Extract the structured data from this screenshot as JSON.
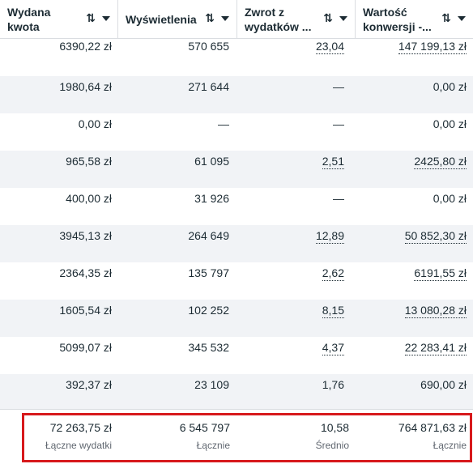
{
  "columns": [
    {
      "label": "Wydana\nkwota",
      "sort_icon": "sort-arrows-icon",
      "menu_icon": "caret-down-icon"
    },
    {
      "label": "Wyświetlenia",
      "sort_icon": "sort-arrows-icon",
      "menu_icon": "caret-down-icon"
    },
    {
      "label": "Zwrot z\nwydatków ...",
      "sort_icon": "sort-arrows-icon",
      "menu_icon": "caret-down-icon"
    },
    {
      "label": "Wartość\nkonwersji -...",
      "sort_icon": "sort-arrows-icon",
      "menu_icon": "caret-down-icon"
    }
  ],
  "sort_glyph": "⇅",
  "rows": [
    {
      "spent": "6390,22 zł",
      "impressions": "570 655",
      "roas": "23,04",
      "conv_value": "147 199,13 zł",
      "roas_dotted": true,
      "conv_dotted": true
    },
    {
      "spent": "1980,64 zł",
      "impressions": "271 644",
      "roas": "—",
      "conv_value": "0,00 zł",
      "roas_dotted": false,
      "conv_dotted": false
    },
    {
      "spent": "0,00 zł",
      "impressions": "—",
      "roas": "—",
      "conv_value": "0,00 zł",
      "roas_dotted": false,
      "conv_dotted": false
    },
    {
      "spent": "965,58 zł",
      "impressions": "61 095",
      "roas": "2,51",
      "conv_value": "2425,80 zł",
      "roas_dotted": true,
      "conv_dotted": true
    },
    {
      "spent": "400,00 zł",
      "impressions": "31 926",
      "roas": "—",
      "conv_value": "0,00 zł",
      "roas_dotted": false,
      "conv_dotted": false
    },
    {
      "spent": "3945,13 zł",
      "impressions": "264 649",
      "roas": "12,89",
      "conv_value": "50 852,30 zł",
      "roas_dotted": true,
      "conv_dotted": true
    },
    {
      "spent": "2364,35 zł",
      "impressions": "135 797",
      "roas": "2,62",
      "conv_value": "6191,55 zł",
      "roas_dotted": true,
      "conv_dotted": true
    },
    {
      "spent": "1605,54 zł",
      "impressions": "102 252",
      "roas": "8,15",
      "conv_value": "13 080,28 zł",
      "roas_dotted": true,
      "conv_dotted": true
    },
    {
      "spent": "5099,07 zł",
      "impressions": "345 532",
      "roas": "4,37",
      "conv_value": "22 283,41 zł",
      "roas_dotted": true,
      "conv_dotted": true
    },
    {
      "spent": "392,37 zł",
      "impressions": "23 109",
      "roas": "1,76",
      "conv_value": "690,00 zł",
      "roas_dotted": false,
      "conv_dotted": false
    }
  ],
  "totals": {
    "spent": {
      "value": "72 263,75 zł",
      "label": "Łączne wydatki"
    },
    "impressions": {
      "value": "6 545 797",
      "label": "Łącznie"
    },
    "roas": {
      "value": "10,58",
      "label": "Średnio"
    },
    "conv_value": {
      "value": "764 871,63 zł",
      "label": "Łącznie"
    }
  },
  "colors": {
    "highlight_border": "#d7191c",
    "row_shade": "#f1f3f6",
    "text": "#1c2b33",
    "muted": "#606770"
  }
}
